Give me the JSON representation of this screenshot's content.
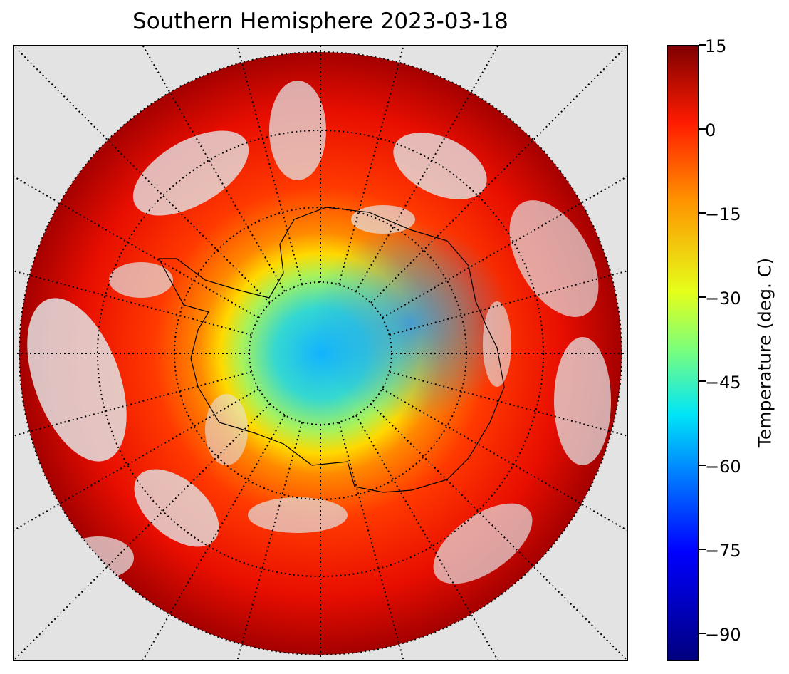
{
  "title": "Southern Hemisphere 2023-03-18",
  "colorbar": {
    "label": "Temperature (deg. C)",
    "ticks": [
      "15",
      "0",
      "−15",
      "−30",
      "−45",
      "−60",
      "−75",
      "−90"
    ],
    "range": [
      -95,
      15
    ],
    "colormap": "jet"
  },
  "map": {
    "projection": "south-polar-stereographic",
    "graticule": "dotted",
    "background_color": "#e3e3e3",
    "coastline_color": "#000000"
  }
}
